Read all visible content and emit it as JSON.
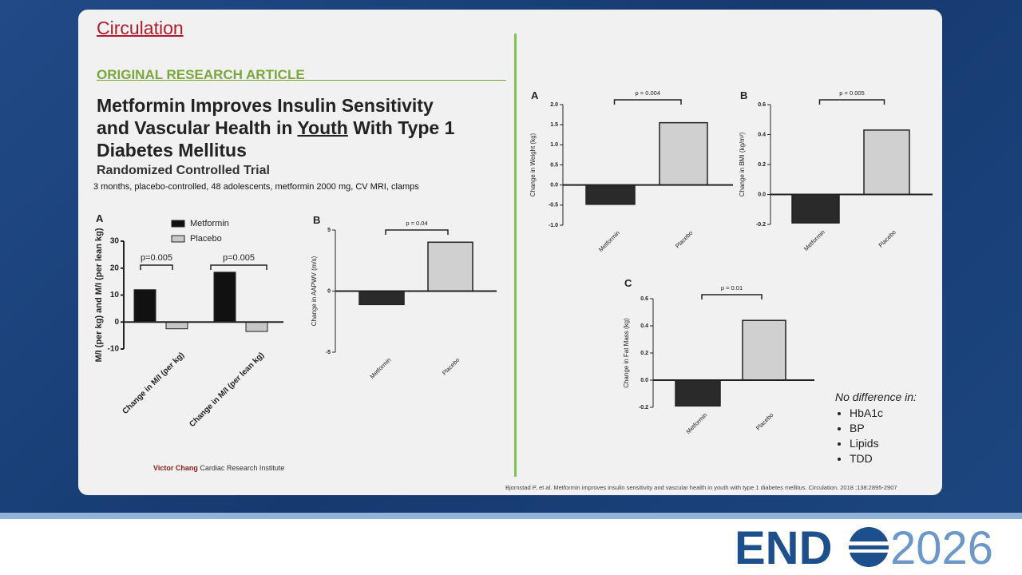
{
  "header": {
    "journal": "Circulation",
    "section": "ORIGINAL RESEARCH ARTICLE",
    "title_parts": [
      "Metformin Improves Insulin Sensitivity",
      "and Vascular Health in",
      "Youth",
      "With Type 1",
      "Diabetes Mellitus"
    ],
    "subtitle": "Randomized Controlled Trial",
    "description": "3 months, placebo-controlled, 48 adolescents, metformin 2000 mg, CV MRI, clamps"
  },
  "footer": {
    "institute_name": "Victor Chang",
    "institute_rest": "Cardiac Research Institute",
    "citation": "Bjornstad P, et al. Metformin improves insulin sensitivity and vascular health in youth with type 1 diabetes mellitus. Circulation. 2018 ;138:2895-2907"
  },
  "notes": {
    "heading": "No difference in:",
    "items": [
      "HbA1c",
      "BP",
      "Lipids",
      "TDD"
    ]
  },
  "logo": {
    "left": "END",
    "right": "2026"
  },
  "chart_data": [
    {
      "type": "bar",
      "panel": "A",
      "y_label": "M/I (per kg) and M/I (per lean kg)",
      "categories": [
        "Change in M/I (per kg)",
        "Change in M/I (per lean kg)"
      ],
      "series": [
        {
          "name": "Metformin",
          "color": "#111111",
          "values": [
            12,
            18.5
          ]
        },
        {
          "name": "Placebo",
          "color": "#c8c8c8",
          "values": [
            -2.5,
            -3.5
          ]
        }
      ],
      "ylim": [
        -10,
        30
      ],
      "yticks": [
        -10,
        0,
        10,
        20,
        30
      ],
      "annotations": [
        "p=0.005",
        "p=0.005"
      ]
    },
    {
      "type": "bar",
      "panel": "B",
      "y_label": "Change in AAPWV (m/s)",
      "categories": [
        "Metformin",
        "Placebo"
      ],
      "values": [
        -1.1,
        4.0
      ],
      "colors": [
        "#2a2a2a",
        "#d0d0d0"
      ],
      "ylim": [
        -5,
        5
      ],
      "yticks": [
        -5,
        0,
        5
      ],
      "annotation": "p = 0.04"
    },
    {
      "type": "bar",
      "panel": "A",
      "y_label": "Change in Weight (kg)",
      "categories": [
        "Metformin",
        "Placebo"
      ],
      "values": [
        -0.48,
        1.55
      ],
      "colors": [
        "#2a2a2a",
        "#d0d0d0"
      ],
      "ylim": [
        -1,
        2
      ],
      "yticks": [
        {
          "value": -1,
          "label": "-1.0"
        },
        -0.5,
        {
          "value": 0,
          "label": "0.0"
        },
        0.5,
        {
          "value": 1,
          "label": "1.0"
        },
        1.5,
        {
          "value": 2,
          "label": "2.0"
        }
      ],
      "annotation": "p = 0.004"
    },
    {
      "type": "bar",
      "panel": "B",
      "y_label": "Change in BMI (kg/m²)",
      "categories": [
        "Metformin",
        "Placebo"
      ],
      "values": [
        -0.19,
        0.43
      ],
      "colors": [
        "#2a2a2a",
        "#d0d0d0"
      ],
      "ylim": [
        -0.2,
        0.6
      ],
      "yticks": [
        -0.2,
        {
          "value": 0,
          "label": "0.0"
        },
        0.2,
        0.4,
        0.6
      ],
      "annotation": "p = 0.005"
    },
    {
      "type": "bar",
      "panel": "C",
      "y_label": "Change in Fat Mass (kg)",
      "categories": [
        "Metformin",
        "Placebo"
      ],
      "values": [
        -0.19,
        0.44
      ],
      "colors": [
        "#2a2a2a",
        "#d0d0d0"
      ],
      "ylim": [
        -0.2,
        0.6
      ],
      "yticks": [
        -0.2,
        {
          "value": 0,
          "label": "0.0"
        },
        0.2,
        0.4,
        0.6
      ],
      "annotation": "p = 0.01"
    }
  ]
}
